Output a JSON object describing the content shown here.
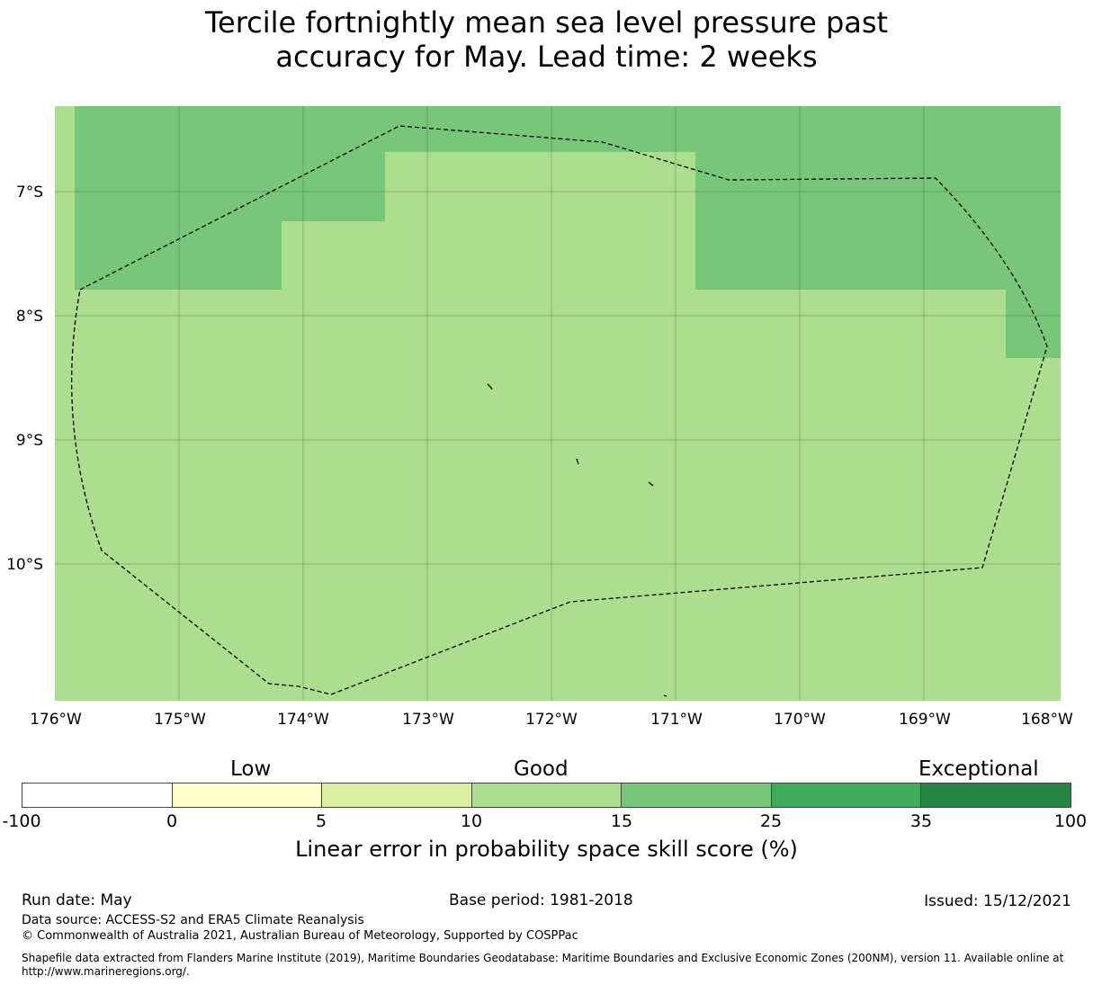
{
  "title": {
    "line1": "Tercile fortnightly mean sea level pressure past",
    "line2": "accuracy for May. Lead time: 2 weeks"
  },
  "map": {
    "lat_labels": [
      "7°S",
      "8°S",
      "9°S",
      "10°S"
    ],
    "lon_labels": [
      "176°W",
      "175°W",
      "174°W",
      "173°W",
      "172°W",
      "171°W",
      "170°W",
      "169°W",
      "168°W"
    ],
    "fill_colors": {
      "good_15_25": "#78c679",
      "good_10_15": "#addd8e"
    }
  },
  "colorbar": {
    "categories": {
      "low": "Low",
      "good": "Good",
      "exceptional": "Exceptional"
    },
    "ticks": [
      "-100",
      "0",
      "5",
      "10",
      "15",
      "25",
      "35",
      "100"
    ],
    "colors": [
      "#ffffff",
      "#ffffcc",
      "#d9f0a3",
      "#addd8e",
      "#78c679",
      "#41ab5d",
      "#238443"
    ],
    "label": "Linear error in probability space skill score (%)"
  },
  "footer": {
    "run_date": "Run date: May",
    "base_period": "Base period: 1981-2018",
    "issued": "Issued: 15/12/2021",
    "data_source": "Data source: ACCESS-S2 and ERA5 Climate Reanalysis",
    "copyright": "© Commonwealth of Australia 2021, Australian Bureau of Meteorology, Supported by COSPPac",
    "shapefile_line1": "Shapefile data extracted from Flanders Marine Institute (2019), Maritime Boundaries Geodatabase: Maritime Boundaries and Exclusive Economic Zones (200NM), version 11. Available online at",
    "shapefile_line2": "http://www.marineregions.org/."
  }
}
